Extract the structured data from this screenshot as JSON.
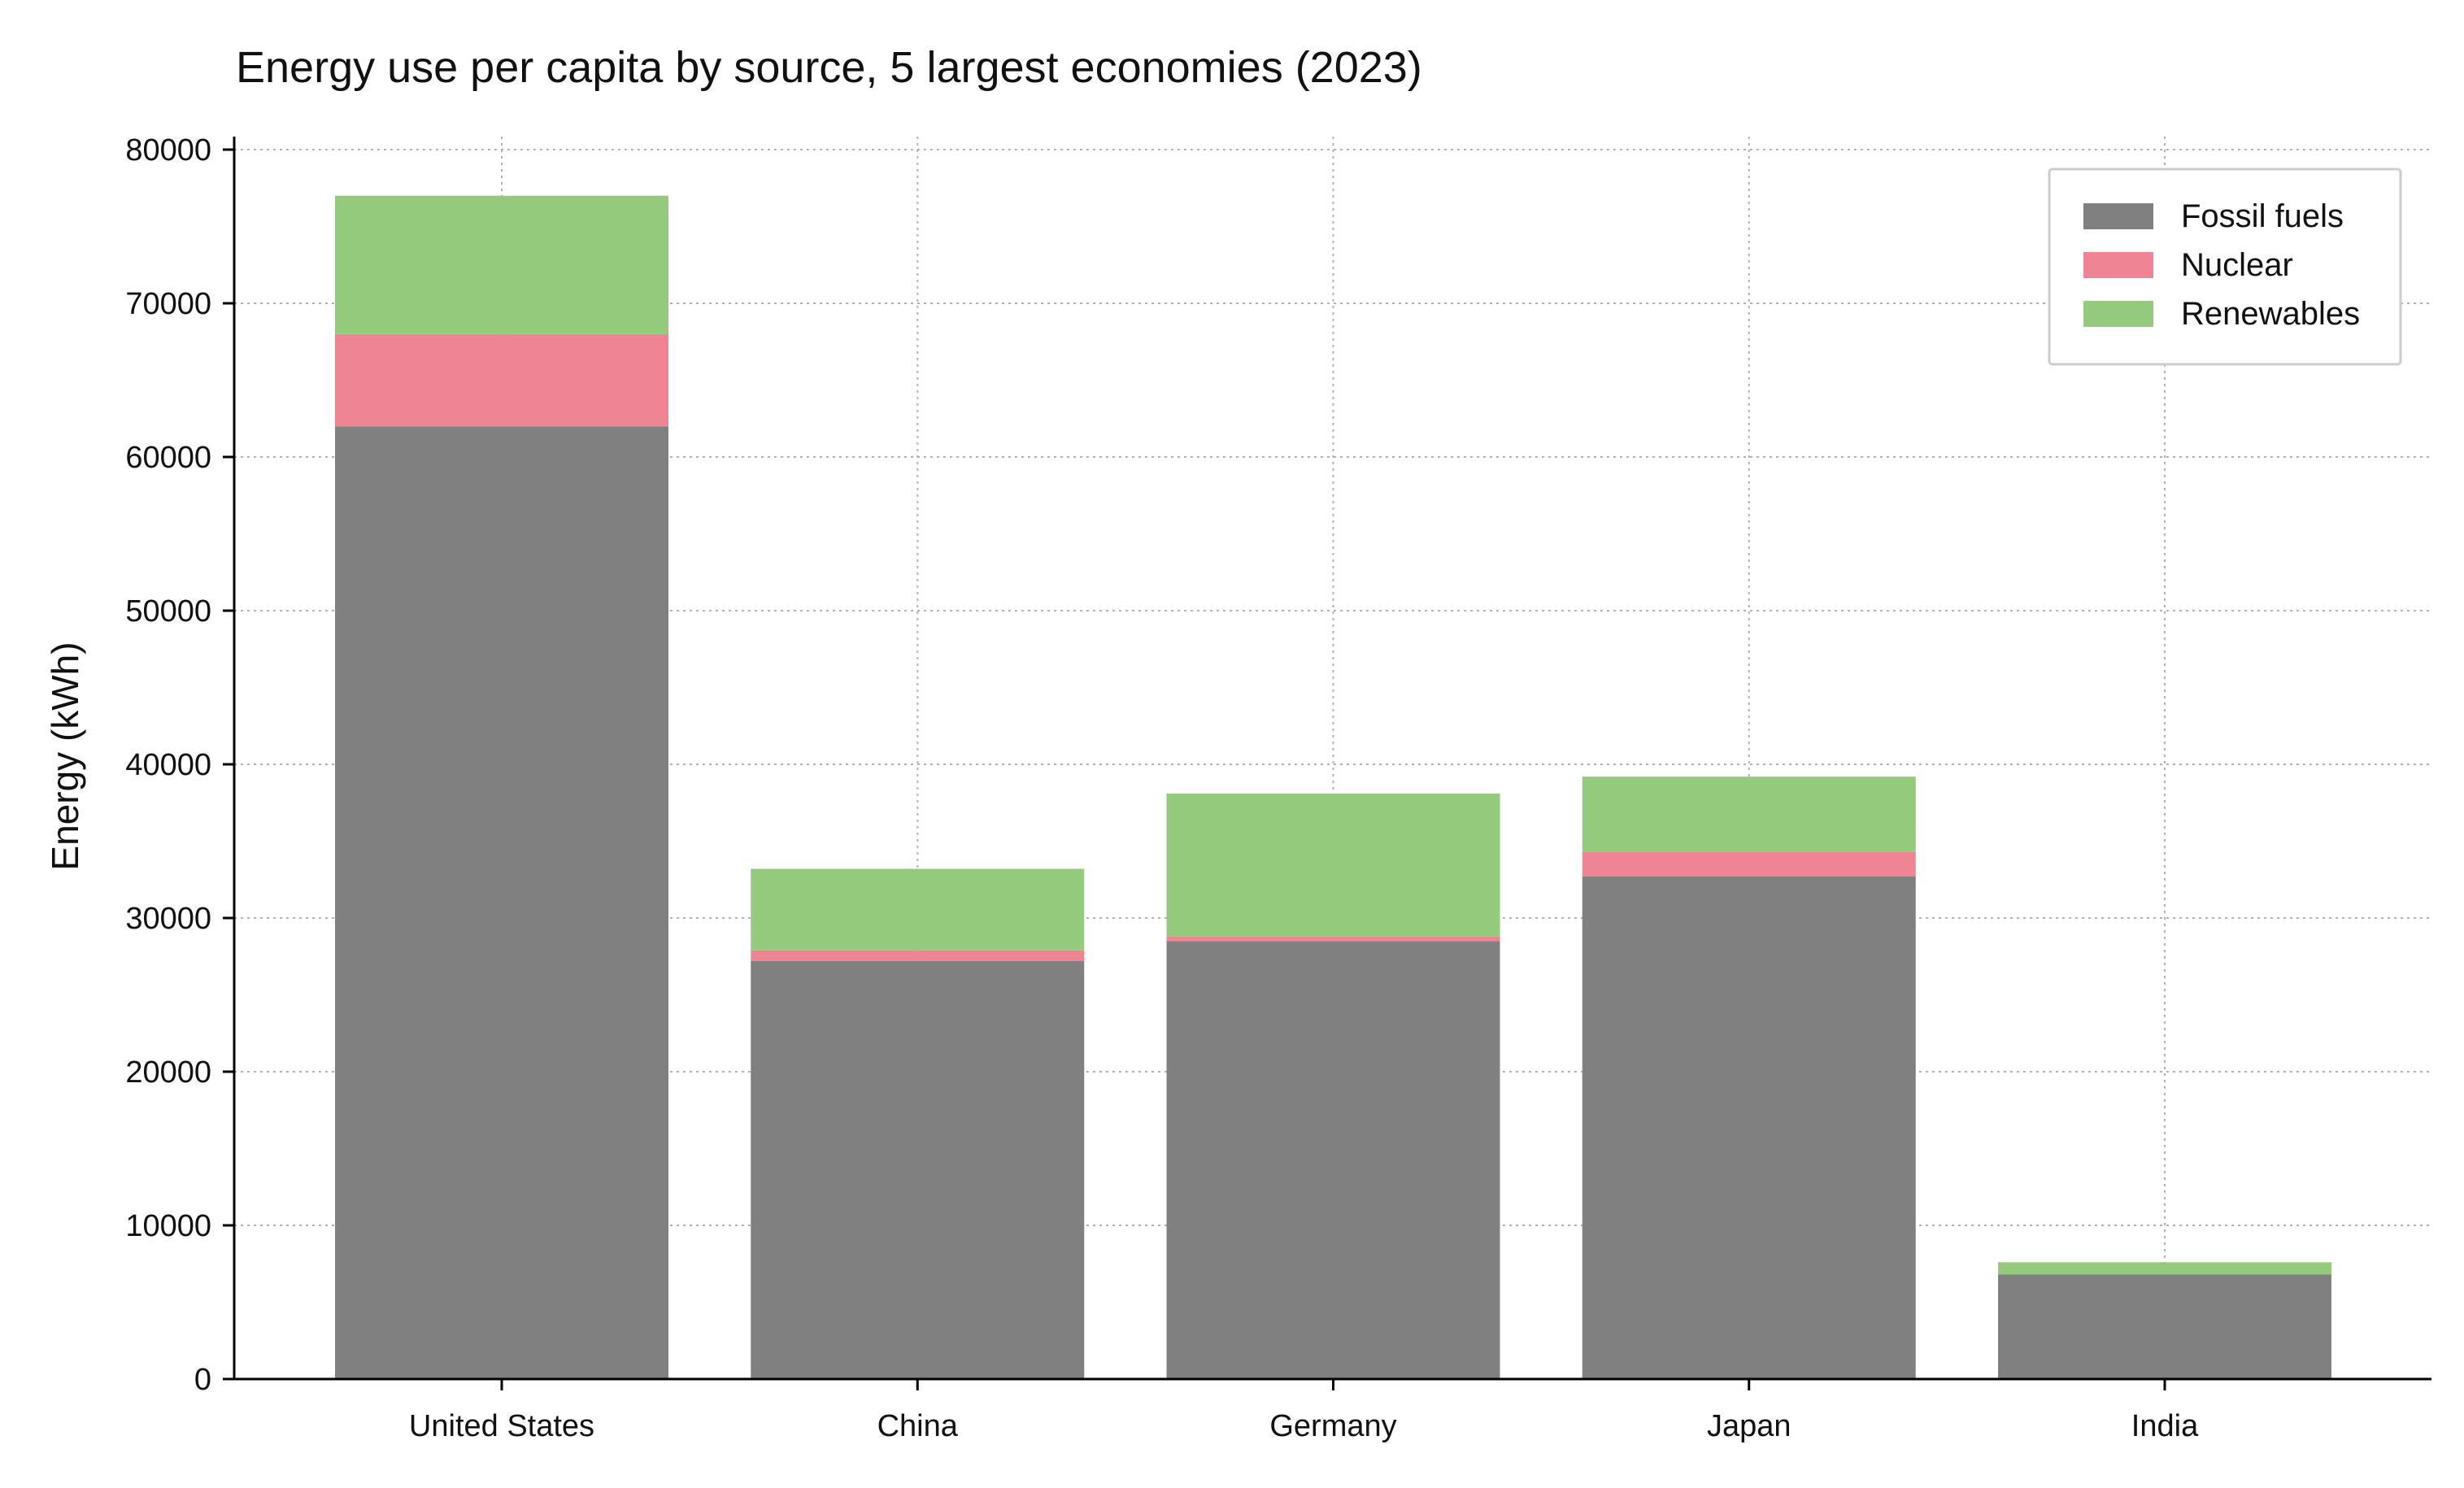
{
  "chart_data": {
    "type": "bar",
    "stacked": true,
    "title": "Energy use per capita by source, 5 largest economies (2023)",
    "xlabel": "",
    "ylabel": "Energy (kWh)",
    "categories": [
      "United States",
      "China",
      "Germany",
      "Japan",
      "India"
    ],
    "series": [
      {
        "name": "Fossil fuels",
        "color": "#808080",
        "values": [
          62000,
          27200,
          28500,
          32700,
          6800
        ]
      },
      {
        "name": "Nuclear",
        "color": "#ef8594",
        "values": [
          6000,
          700,
          300,
          1600,
          0
        ]
      },
      {
        "name": "Renewables",
        "color": "#95c97b",
        "values": [
          9000,
          5300,
          9300,
          4900,
          800
        ]
      }
    ],
    "ylim": [
      0,
      80000
    ],
    "yticks": [
      "0",
      "10000",
      "20000",
      "30000",
      "40000",
      "50000",
      "60000",
      "70000",
      "80000"
    ],
    "grid": true,
    "legend_position": "top-right"
  }
}
